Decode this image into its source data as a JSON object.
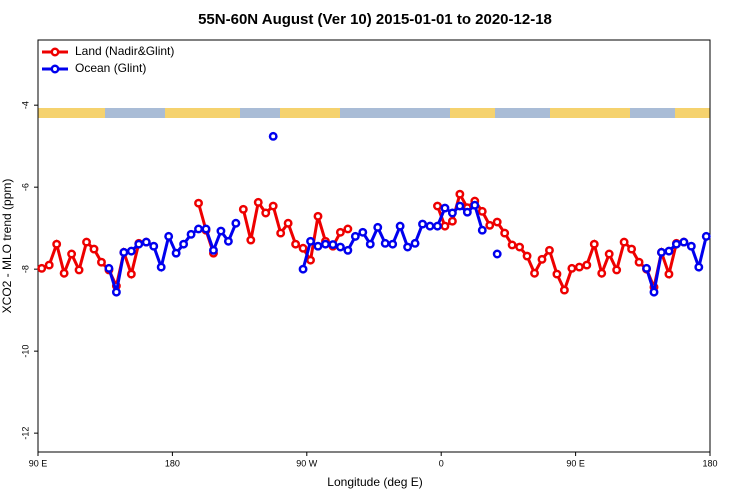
{
  "chart_data": {
    "type": "line",
    "title": "55N-60N August (Ver 10)   2015-01-01 to 2020-12-18",
    "x_label": "Longitude (deg E)",
    "y_label": "XCO2 - MLO trend (ppm)",
    "xlim": [
      90,
      540
    ],
    "xticks": [
      {
        "value": 90,
        "label": "90 E"
      },
      {
        "value": 180,
        "label": "180"
      },
      {
        "value": 270,
        "label": "90 W"
      },
      {
        "value": 360,
        "label": "0"
      },
      {
        "value": 450,
        "label": "90 E"
      },
      {
        "value": 540,
        "label": "180"
      }
    ],
    "ylim": [
      -12.46,
      -2.41
    ],
    "yticks": [
      -4,
      -6,
      -8,
      -10,
      -12
    ],
    "legend": "top-left",
    "x": [
      92.5,
      97.5,
      102.5,
      107.5,
      112.5,
      117.5,
      122.5,
      127.5,
      132.5,
      137.5,
      142.5,
      147.5,
      152.5,
      157.5,
      162.5,
      167.5,
      172.5,
      177.5,
      182.5,
      187.5,
      192.5,
      197.5,
      202.5,
      207.5,
      212.5,
      217.5,
      222.5,
      227.5,
      232.5,
      237.5,
      242.5,
      247.5,
      252.5,
      257.5,
      262.5,
      267.5,
      272.5,
      277.5,
      282.5,
      287.5,
      292.5,
      297.5,
      302.5,
      307.5,
      312.5,
      317.5,
      322.5,
      327.5,
      332.5,
      337.5,
      342.5,
      347.5,
      352.5,
      357.5,
      362.5,
      367.5,
      372.5,
      377.5,
      382.5,
      387.5,
      392.5,
      397.5,
      402.5,
      407.5,
      412.5,
      417.5,
      422.5,
      427.5,
      432.5,
      437.5,
      442.5,
      447.5,
      452.5,
      457.5,
      462.5,
      467.5,
      472.5,
      477.5,
      482.5,
      487.5,
      492.5,
      497.5,
      502.5,
      507.5,
      512.5,
      517.5,
      522.5,
      527.5,
      532.5,
      537.5
    ],
    "series": [
      {
        "name": "Land (Nadir&Glint)",
        "color": "#ee0000",
        "values": [
          -7.98,
          -7.9,
          -7.39,
          -8.1,
          -7.63,
          -8.02,
          -7.34,
          -7.51,
          -7.83,
          -8.02,
          -8.41,
          -7.59,
          -8.12,
          -7.37,
          -7.34,
          null,
          null,
          null,
          null,
          null,
          null,
          -6.39,
          -7.05,
          -7.61,
          null,
          null,
          null,
          -6.54,
          -7.29,
          -6.37,
          -6.63,
          -6.46,
          -7.12,
          -6.88,
          -7.39,
          -7.49,
          -7.78,
          -6.71,
          -7.32,
          -7.44,
          -7.1,
          -7.02,
          null,
          null,
          null,
          null,
          null,
          null,
          null,
          null,
          null,
          null,
          null,
          -6.46,
          -6.95,
          -6.83,
          -6.17,
          -6.5,
          -6.34,
          -6.59,
          -6.93,
          -6.85,
          -7.12,
          -7.41,
          -7.46,
          -7.68,
          -8.1,
          -7.76,
          -7.54,
          -8.12,
          -8.51,
          -7.98,
          -7.95,
          -7.9,
          -7.39,
          -8.1,
          -7.63,
          -8.02,
          -7.34,
          -7.51,
          -7.83,
          -8.0,
          -8.44,
          -7.59,
          -8.12,
          -7.37,
          -7.34,
          null,
          null,
          null
        ]
      },
      {
        "name": "Ocean (Glint)",
        "color": "#0000ee",
        "values": [
          null,
          null,
          null,
          null,
          null,
          null,
          null,
          null,
          null,
          -7.98,
          -8.56,
          -7.59,
          -7.56,
          -7.39,
          -7.34,
          -7.44,
          -7.95,
          -7.2,
          -7.61,
          -7.39,
          -7.15,
          -7.02,
          -7.02,
          -7.54,
          -7.07,
          -7.32,
          -6.88,
          null,
          null,
          null,
          null,
          -4.76,
          null,
          null,
          null,
          -8.0,
          -7.32,
          -7.44,
          -7.39,
          -7.4,
          -7.46,
          -7.54,
          -7.2,
          -7.1,
          -7.39,
          -6.98,
          -7.37,
          -7.39,
          -6.95,
          -7.46,
          -7.37,
          -6.9,
          -6.95,
          -6.95,
          -6.51,
          -6.63,
          -6.46,
          -6.61,
          -6.44,
          -7.05,
          null,
          -7.63,
          null,
          null,
          null,
          null,
          null,
          null,
          null,
          null,
          null,
          null,
          null,
          null,
          null,
          null,
          null,
          null,
          null,
          null,
          null,
          -7.98,
          -8.56,
          -7.59,
          -7.56,
          -7.39,
          -7.34,
          -7.44,
          -7.95,
          -7.2
        ]
      }
    ]
  }
}
